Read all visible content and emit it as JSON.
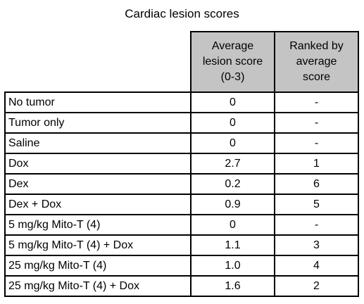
{
  "title": "Cardiac lesion scores",
  "table": {
    "headers": {
      "score": [
        "Average",
        "lesion score",
        "(0-3)"
      ],
      "rank": [
        "Ranked by",
        "average",
        "score"
      ]
    },
    "rows": [
      {
        "group": "No tumor",
        "score": "0",
        "rank": "-"
      },
      {
        "group": "Tumor only",
        "score": "0",
        "rank": "-"
      },
      {
        "group": "Saline",
        "score": "0",
        "rank": "-"
      },
      {
        "group": "Dox",
        "score": "2.7",
        "rank": "1"
      },
      {
        "group": "Dex",
        "score": "0.2",
        "rank": "6"
      },
      {
        "group": "Dex + Dox",
        "score": "0.9",
        "rank": "5"
      },
      {
        "group": "5 mg/kg Mito-T (4)",
        "score": "0",
        "rank": "-"
      },
      {
        "group": "5 mg/kg Mito-T (4) + Dox",
        "score": "1.1",
        "rank": "3"
      },
      {
        "group": "25 mg/kg Mito-T (4)",
        "score": "1.0",
        "rank": "4"
      },
      {
        "group": "25 mg/kg Mito-T (4) + Dox",
        "score": "1.6",
        "rank": "2"
      }
    ]
  },
  "colors": {
    "header_fill": "#c4c4c4",
    "border": "#000000",
    "text": "#000000"
  }
}
